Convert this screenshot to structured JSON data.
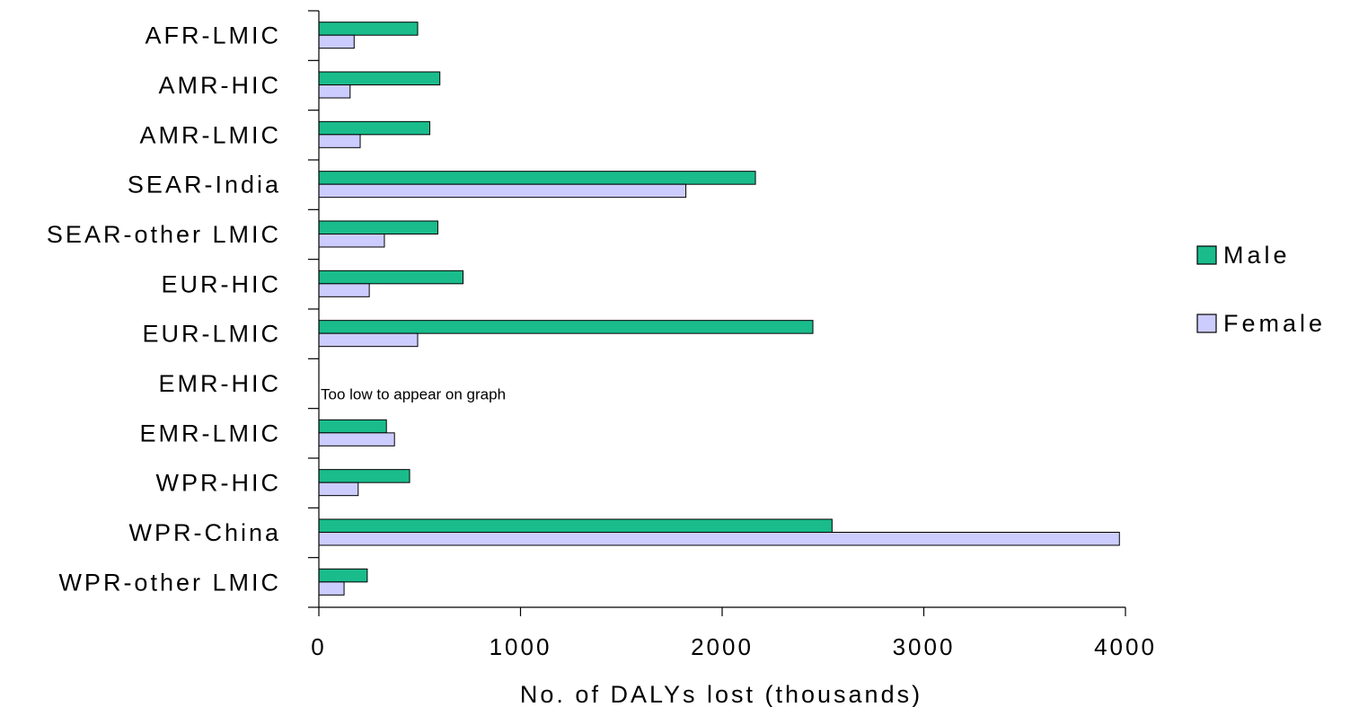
{
  "chart_data": {
    "type": "bar",
    "orientation": "horizontal",
    "categories": [
      "AFR-LMIC",
      "AMR-HIC",
      "AMR-LMIC",
      "SEAR-India",
      "SEAR-other LMIC",
      "EUR-HIC",
      "EUR-LMIC",
      "EMR-HIC",
      "EMR-LMIC",
      "WPR-HIC",
      "WPR-China",
      "WPR-other LMIC"
    ],
    "series": [
      {
        "name": "Male",
        "color": "#1abc8c",
        "values": [
          490,
          600,
          550,
          2165,
          590,
          715,
          2450,
          0,
          335,
          450,
          2545,
          240
        ]
      },
      {
        "name": "Female",
        "color": "#ccccff",
        "values": [
          175,
          155,
          205,
          1820,
          325,
          250,
          490,
          0,
          375,
          195,
          3970,
          125
        ]
      }
    ],
    "xlabel": "No. of DALYs lost (thousands)",
    "ylabel": "",
    "xlim": [
      0,
      4000
    ],
    "xticks": [
      0,
      1000,
      2000,
      3000,
      4000
    ],
    "grid": false,
    "legend_position": "right",
    "annotations": [
      {
        "category": "EMR-HIC",
        "text": "Too low to appear on graph"
      }
    ]
  }
}
